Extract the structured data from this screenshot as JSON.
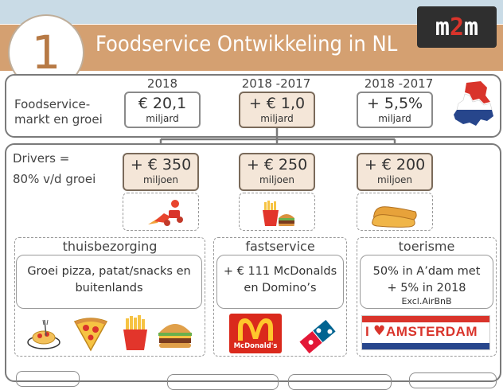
{
  "header": {
    "number": "1",
    "title": "Foodservice Ontwikkeling in NL",
    "logo_prefix": "m",
    "logo_accent": "2",
    "logo_suffix": "m"
  },
  "market": {
    "label_line1": "Foodservice-",
    "label_line2": "markt en groei",
    "metrics": [
      {
        "year": "2018",
        "value": "€ 20,1",
        "unit": "miljard"
      },
      {
        "year": "2018 -2017",
        "value": "+ € 1,0",
        "unit": "miljard"
      },
      {
        "year": "2018 -2017",
        "value": "+ 5,5%",
        "unit": "miljard"
      }
    ]
  },
  "drivers": {
    "label_line1": "Drivers =",
    "label_line2": "80% v/d groei",
    "items": [
      {
        "value": "+ € 350",
        "unit": "miljoen",
        "icon": "delivery-scooter-icon"
      },
      {
        "value": "+ € 250",
        "unit": "miljoen",
        "icon": "fries-burger-icon"
      },
      {
        "value": "+ € 200",
        "unit": "miljoen",
        "icon": "clogs-icon"
      }
    ]
  },
  "categories": [
    {
      "name": "thuisbezorging",
      "line1": "Groei pizza, patat/snacks en",
      "line2": "buitenlands",
      "note": ""
    },
    {
      "name": "fastservice",
      "line1": "+ € 111 McDonalds",
      "line2": "en Domino’s",
      "note": ""
    },
    {
      "name": "toerisme",
      "line1": "50% in A’dam met",
      "line2": "+ 5% in 2018",
      "note": "Excl.AirBnB"
    }
  ],
  "brands": {
    "mcdonalds": "McDonald's",
    "amsterdam_prefix": "I",
    "amsterdam": "AMSTERDAM"
  },
  "colors": {
    "banner": "#d4a071",
    "highlight": "#f4e6d8",
    "accent_red": "#d9342b",
    "sky": "#c9dbe6"
  }
}
